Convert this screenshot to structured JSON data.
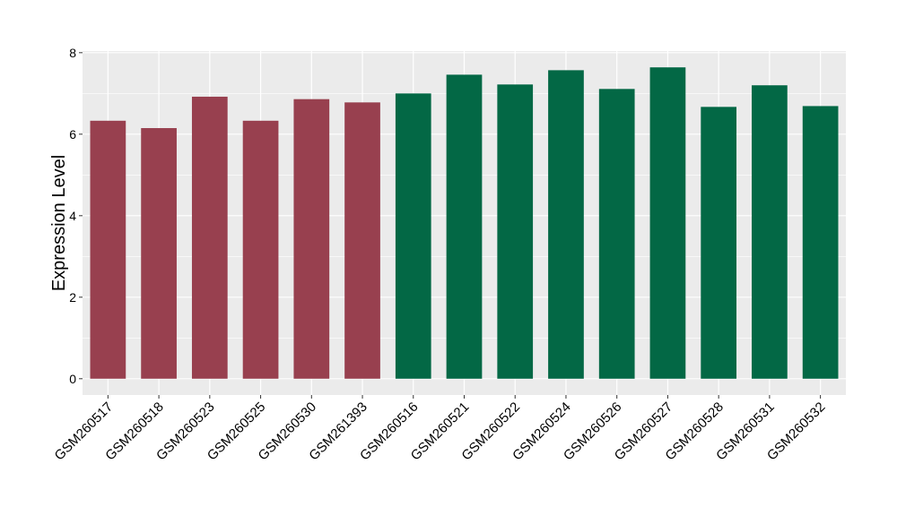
{
  "chart_data": {
    "type": "bar",
    "ylabel": "Expression Level",
    "xlabel": "",
    "ylim": [
      -0.4,
      8.04
    ],
    "y_ticks": [
      "0",
      "2",
      "4",
      "6",
      "8"
    ],
    "y_tick_values": [
      0,
      2,
      4,
      6,
      8
    ],
    "grid": true,
    "categories": [
      "GSM260517",
      "GSM260518",
      "GSM260523",
      "GSM260525",
      "GSM260530",
      "GSM261393",
      "GSM260516",
      "GSM260521",
      "GSM260522",
      "GSM260524",
      "GSM260526",
      "GSM260527",
      "GSM260528",
      "GSM260531",
      "GSM260532"
    ],
    "values": [
      6.33,
      6.15,
      6.92,
      6.33,
      6.86,
      6.78,
      7.0,
      7.46,
      7.22,
      7.57,
      7.11,
      7.64,
      6.67,
      7.2,
      6.69
    ],
    "group_of_bar": [
      0,
      0,
      0,
      0,
      0,
      0,
      1,
      1,
      1,
      1,
      1,
      1,
      1,
      1,
      1
    ],
    "group_colors": [
      "#98404f",
      "#036845"
    ],
    "panel_background": "#ebebeb",
    "grid_color": "#ffffff",
    "text_color": "#000000"
  }
}
